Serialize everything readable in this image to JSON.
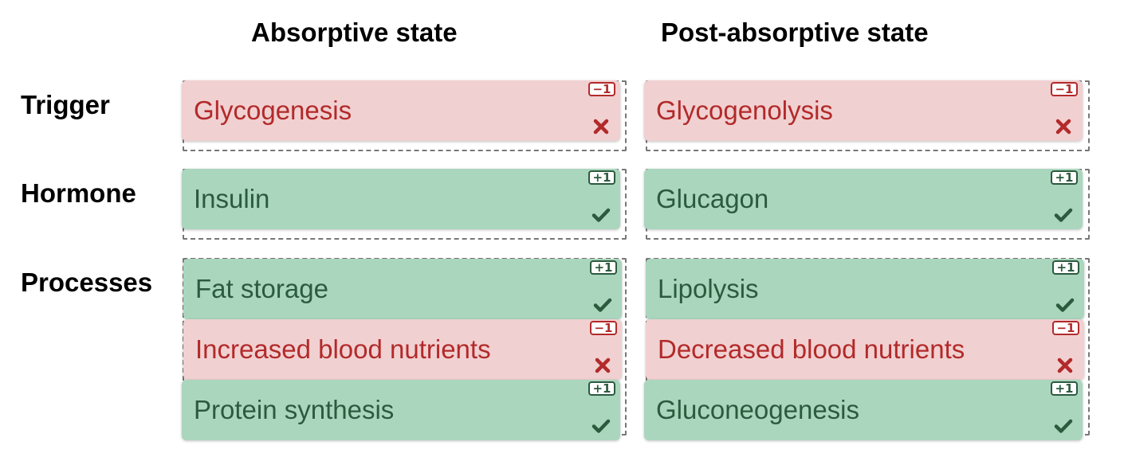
{
  "columns": {
    "absorptive": "Absorptive state",
    "post_absorptive": "Post-absorptive state"
  },
  "rows": {
    "trigger": "Trigger",
    "hormone": "Hormone",
    "processes": "Processes"
  },
  "cards": {
    "abs_trigger": {
      "label": "Glycogenesis",
      "score": "−1",
      "status": "incorrect"
    },
    "post_trigger": {
      "label": "Glycogenolysis",
      "score": "−1",
      "status": "incorrect"
    },
    "abs_hormone": {
      "label": "Insulin",
      "score": "+1",
      "status": "correct"
    },
    "post_hormone": {
      "label": "Glucagon",
      "score": "+1",
      "status": "correct"
    },
    "abs_proc_1": {
      "label": "Fat storage",
      "score": "+1",
      "status": "correct"
    },
    "abs_proc_2": {
      "label": "Increased blood nutrients",
      "score": "−1",
      "status": "incorrect"
    },
    "abs_proc_3": {
      "label": "Protein synthesis",
      "score": "+1",
      "status": "correct"
    },
    "post_proc_1": {
      "label": "Lipolysis",
      "score": "+1",
      "status": "correct"
    },
    "post_proc_2": {
      "label": "Decreased blood nutrients",
      "score": "−1",
      "status": "incorrect"
    },
    "post_proc_3": {
      "label": "Gluconeogenesis",
      "score": "+1",
      "status": "correct"
    }
  },
  "icons": {
    "correct": "check-icon",
    "incorrect": "cross-icon"
  },
  "colors": {
    "correct_bg": "#aad6be",
    "correct_text": "#2c5a3f",
    "incorrect_bg": "#f1d0d1",
    "incorrect_text": "#b22a2a"
  }
}
